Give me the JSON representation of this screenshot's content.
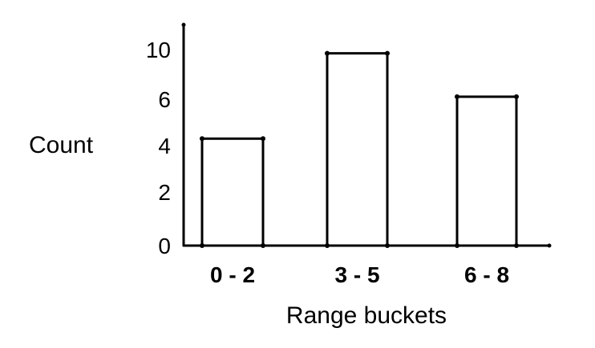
{
  "chart_data": {
    "type": "bar",
    "categories": [
      "0 - 2",
      "3 - 5",
      "6 - 8"
    ],
    "values": [
      4.3,
      9.7,
      6.2
    ],
    "xlabel": "Range buckets",
    "ylabel": "Count",
    "yticks": [
      {
        "value": 0,
        "label": "0"
      },
      {
        "value": 2,
        "label": "2"
      },
      {
        "value": 4,
        "label": "4"
      },
      {
        "value": 6,
        "label": "6"
      },
      {
        "value": 10,
        "label": "10"
      }
    ],
    "grid": false,
    "legend": "none",
    "colors": {
      "bar_fill": "#ffffff",
      "stroke": "#000000"
    }
  }
}
